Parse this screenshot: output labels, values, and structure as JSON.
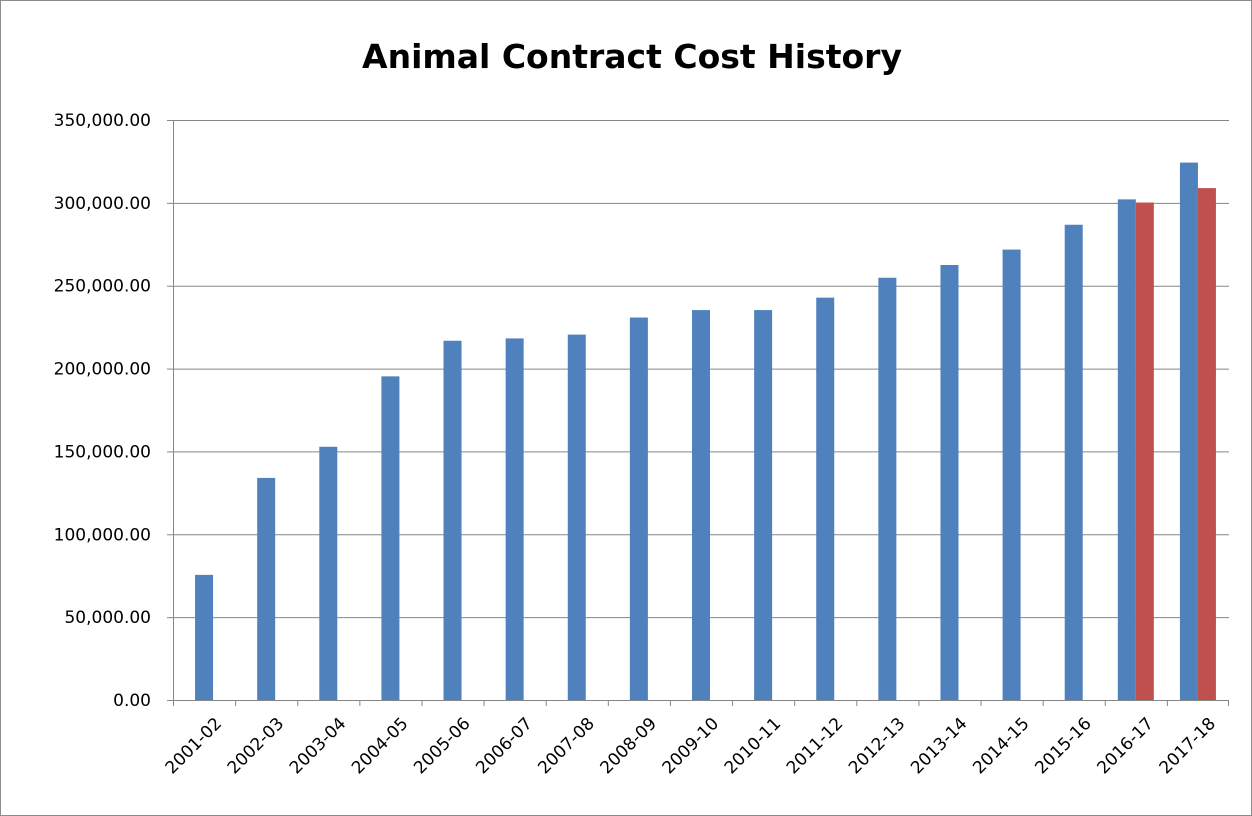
{
  "chart_data": {
    "type": "bar",
    "title": "Animal Contract Cost History",
    "xlabel": "",
    "ylabel": "",
    "ylim": [
      0,
      350000
    ],
    "y_ticks": [
      "0.00",
      "50,000.00",
      "100,000.00",
      "150,000.00",
      "200,000.00",
      "250,000.00",
      "300,000.00",
      "350,000.00"
    ],
    "y_tick_values": [
      0,
      50000,
      100000,
      150000,
      200000,
      250000,
      300000,
      350000
    ],
    "grid": true,
    "legend": "none",
    "categories": [
      "2001-02",
      "2002-03",
      "2003-04",
      "2004-05",
      "2005-06",
      "2006-07",
      "2007-08",
      "2008-09",
      "2009-10",
      "2010-11",
      "2011-12",
      "2012-13",
      "2013-14",
      "2014-15",
      "2015-16",
      "2016-17",
      "2017-18"
    ],
    "series": [
      {
        "color": "#4f81bd",
        "values": [
          75500,
          134000,
          152800,
          195300,
          216800,
          218200,
          220500,
          230800,
          235300,
          235300,
          242800,
          254800,
          262500,
          271800,
          286800,
          302100,
          324300
        ]
      },
      {
        "color": "#c0504d",
        "values": [
          null,
          null,
          null,
          null,
          null,
          null,
          null,
          null,
          null,
          null,
          null,
          null,
          null,
          null,
          null,
          300200,
          308900
        ]
      }
    ]
  }
}
